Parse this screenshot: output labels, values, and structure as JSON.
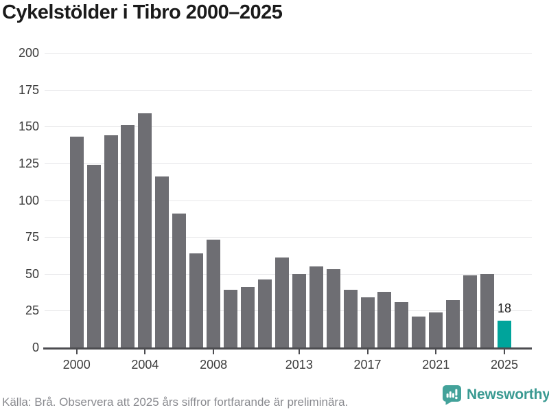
{
  "title": "Cykelstölder i Tibro 2000–2025",
  "chart_data": {
    "type": "bar",
    "title": "Cykelstölder i Tibro 2000–2025",
    "categories": [
      2000,
      2001,
      2002,
      2003,
      2004,
      2005,
      2006,
      2007,
      2008,
      2009,
      2010,
      2011,
      2012,
      2013,
      2014,
      2015,
      2016,
      2017,
      2018,
      2019,
      2020,
      2021,
      2022,
      2023,
      2024,
      2025
    ],
    "values": [
      143,
      124,
      144,
      151,
      159,
      116,
      91,
      64,
      73,
      39,
      41,
      46,
      61,
      50,
      55,
      53,
      39,
      34,
      38,
      31,
      21,
      24,
      32,
      49,
      50,
      18
    ],
    "xlabel": "",
    "ylabel": "",
    "ylim": [
      0,
      200
    ],
    "yticks": [
      0,
      25,
      50,
      75,
      100,
      125,
      150,
      175,
      200
    ],
    "xticks": [
      2000,
      2004,
      2008,
      2013,
      2017,
      2021,
      2025
    ],
    "grid": true,
    "legend": false,
    "bar_color": "#6e6e73",
    "highlight_index": 25,
    "highlight_color": "#00a49b",
    "annotation": {
      "index": 25,
      "label": "18"
    }
  },
  "footer": {
    "source_note": "Källa: Brå. Observera att 2025 års siffror fortfarande är preliminära."
  },
  "branding": {
    "logo_text": "Newsworthy",
    "brand_color": "#3a9a92",
    "icon_color": "#43a29a",
    "icon": "chart-speech-bubble-icon"
  }
}
